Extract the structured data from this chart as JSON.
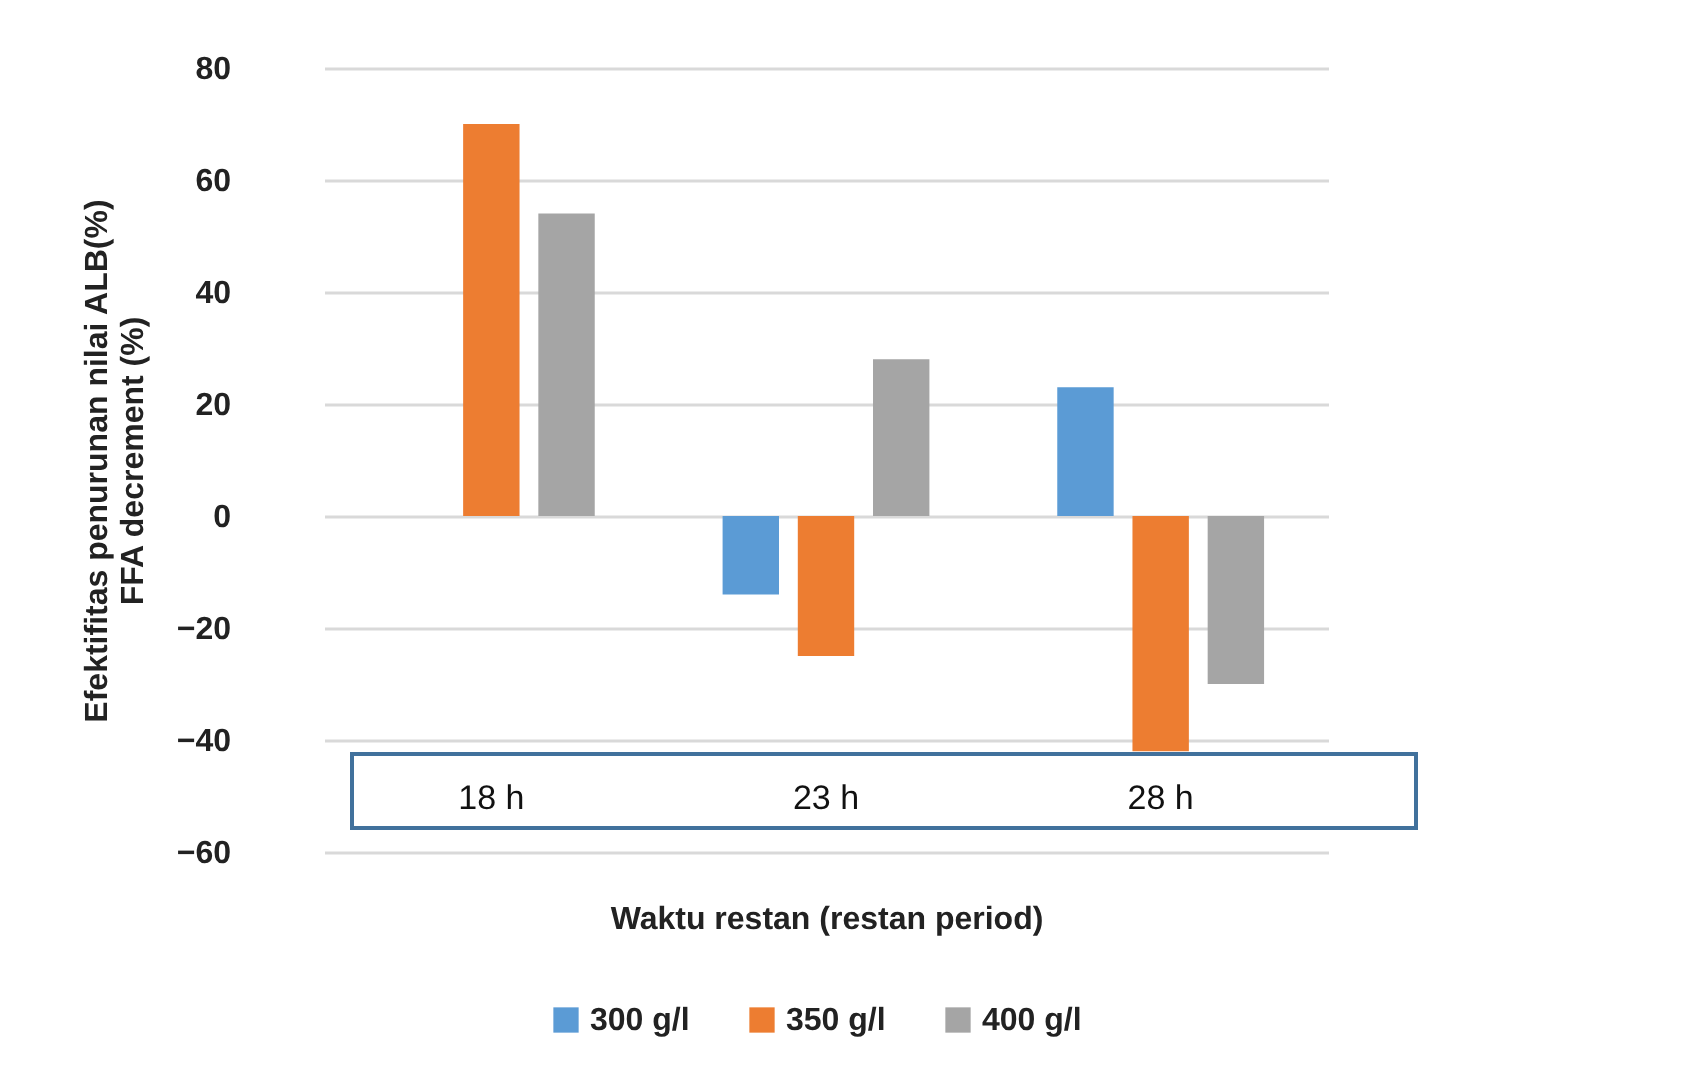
{
  "chart_data": {
    "type": "bar",
    "xlabel": "Waktu restan (restan period)",
    "ylabel": "Efektifitas penurunan nilai ALB(%)\nFFA  decrement (%)",
    "categories": [
      "18 h",
      "23 h",
      "28 h"
    ],
    "series": [
      {
        "name": "300 g/l",
        "color": "#5b9bd5",
        "values": [
          null,
          -14,
          23
        ]
      },
      {
        "name": "350 g/l",
        "color": "#ed7d31",
        "values": [
          70,
          -25,
          -42
        ]
      },
      {
        "name": "400 g/l",
        "color": "#a5a5a5",
        "values": [
          54,
          28,
          -30
        ]
      }
    ],
    "ylim": [
      -60,
      80
    ],
    "yticks": [
      -60,
      -40,
      -20,
      0,
      20,
      40,
      60,
      80
    ],
    "grid": "y",
    "legend": "bottom"
  }
}
